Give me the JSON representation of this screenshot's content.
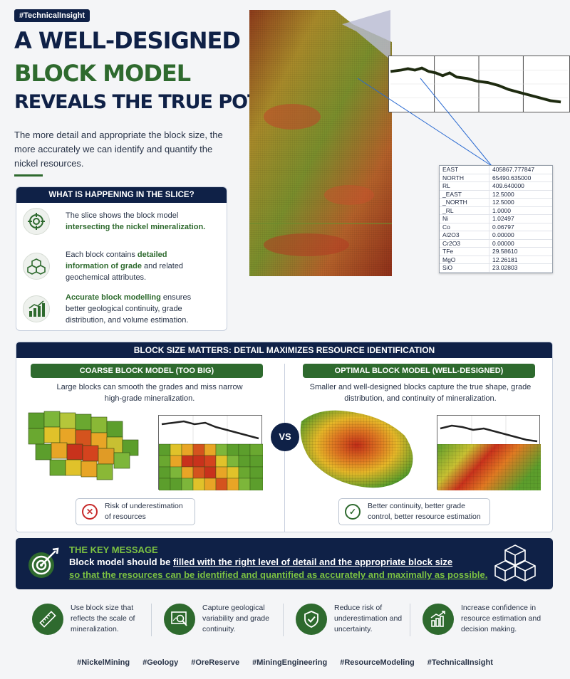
{
  "tag": "#TechnicalInsight",
  "title": {
    "line1": "A WELL-DESIGNED",
    "line2": "BLOCK MODEL",
    "line3": "REVEALS THE TRUE POTENTIAL"
  },
  "intro": "The more detail and appropriate the block size, the more accurately we can identify and quantify the nickel resources.",
  "slice_card": {
    "heading": "WHAT IS HAPPENING IN THE SLICE?",
    "items": [
      {
        "icon": "target-icon",
        "pre": "The slice shows the block model ",
        "highlight": "intersecting the nickel mineralization.",
        "post": ""
      },
      {
        "icon": "cubes-icon",
        "pre": "Each block contains ",
        "highlight": "detailed information of grade",
        "post": " and related geochemical attributes."
      },
      {
        "icon": "bar-chart-icon",
        "pre": "",
        "highlight": "Accurate block modelling",
        "post": " ensures better geological continuity, grade distribution, and volume estimation."
      }
    ]
  },
  "attributes": [
    {
      "name": "EAST",
      "value": "405867.777847"
    },
    {
      "name": "NORTH",
      "value": "65490.635000"
    },
    {
      "name": "RL",
      "value": "409.640000"
    },
    {
      "name": "_EAST",
      "value": "12.5000"
    },
    {
      "name": "_NORTH",
      "value": "12.5000"
    },
    {
      "name": "_RL",
      "value": "1.0000"
    },
    {
      "name": "Ni",
      "value": "1.02497"
    },
    {
      "name": "Co",
      "value": "0.06797"
    },
    {
      "name": "Al2O3",
      "value": "0.00000"
    },
    {
      "name": "Cr2O3",
      "value": "0.00000"
    },
    {
      "name": "TFe",
      "value": "29.58610"
    },
    {
      "name": "MgO",
      "value": "12.26181"
    },
    {
      "name": "SiO",
      "value": "23.02803"
    }
  ],
  "size_section": {
    "heading": "BLOCK SIZE MATTERS: DETAIL MAXIMIZES RESOURCE IDENTIFICATION",
    "coarse": {
      "label": "COARSE BLOCK MODEL (TOO BIG)",
      "text": "Large blocks can smooth the grades and miss narrow high-grade mineralization.",
      "badge": "Risk of underestimation of resources"
    },
    "optimal": {
      "label": "OPTIMAL BLOCK MODEL (WELL-DESIGNED)",
      "text": "Smaller and well-designed blocks capture the true shape, grade distribution, and continuity of mineralization.",
      "badge": "Better continuity, better grade control, better resource estimation"
    },
    "vs": "VS"
  },
  "key_message": {
    "title": "THE KEY MESSAGE",
    "line1_pre": "Block model should be ",
    "line1_u": "filled with the right level of detail and the appropriate block size",
    "line2": "so that the resources can be identified and quantified as accurately and maximally as possible."
  },
  "benefits": [
    {
      "icon": "ruler-icon",
      "text": "Use block size that reflects the scale of mineralization."
    },
    {
      "icon": "magnifier-chart-icon",
      "text": "Capture geological variability and grade continuity."
    },
    {
      "icon": "shield-check-icon",
      "text": "Reduce risk of underestimation and uncertainty."
    },
    {
      "icon": "growth-chart-icon",
      "text": "Increase confidence in resource estimation and decision making."
    }
  ],
  "hashtags": [
    "#NickelMining",
    "#Geology",
    "#OreReserve",
    "#MiningEngineering",
    "#ResourceModeling",
    "#TechnicalInsight"
  ],
  "colors": {
    "navy": "#0f2147",
    "green": "#2e6a2e",
    "lime": "#7cc242"
  }
}
